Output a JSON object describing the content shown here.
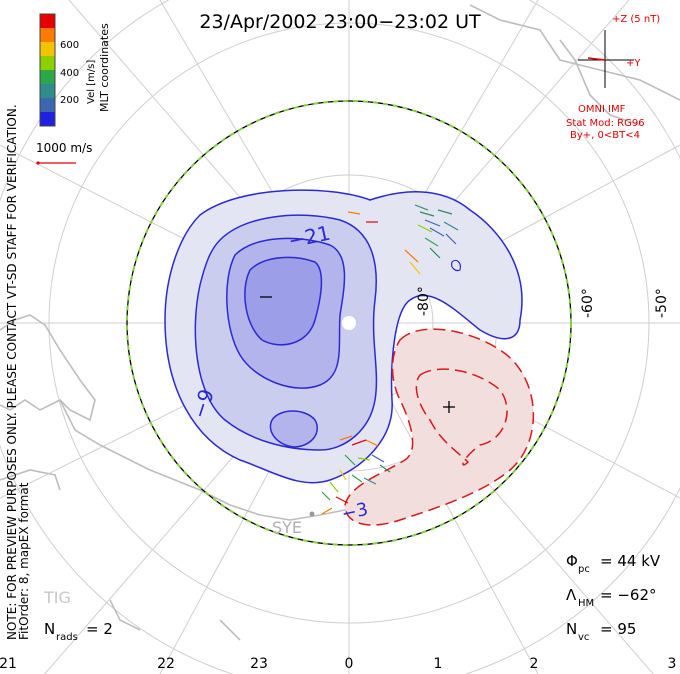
{
  "title": "23/Apr/2002 23:00−23:02 UT",
  "colorbar": {
    "coord_label": "MLT coordinates",
    "vel_label": "Vel [m/s]",
    "ticks": [
      "600",
      "400",
      "200"
    ],
    "colors": [
      "#e60000",
      "#ff7a00",
      "#f5c400",
      "#8cd000",
      "#2aa84a",
      "#2f8c8a",
      "#3c66b0",
      "#2020e0"
    ]
  },
  "scale_vector": {
    "label": "1000 m/s"
  },
  "imf": {
    "z_label": "+Z (5 nT)",
    "y_label": "+Y",
    "source": "OMNI IMF",
    "model": "Stat Mod: RG96",
    "condition": "By+, 0<BT<4"
  },
  "notes": {
    "preview": "NOTE: FOR PREVIEW PURPOSES ONLY. PLEASE CONTACT VT-SD STAFF FOR VERIFICATION.",
    "fit": "FitOrder: 8, mapEX format"
  },
  "latitude_labels": [
    "-80°",
    "-60°",
    "-50°"
  ],
  "contour_labels": {
    "negative_1": "−21",
    "negative_2": "−9",
    "negative_3": "−3"
  },
  "extrema": {
    "min_marker": "–",
    "max_marker": "+"
  },
  "stations": {
    "sye": "SYE",
    "tig": "TIG"
  },
  "stats": {
    "phi_pc_label": "Φ",
    "phi_pc_sub": "pc",
    "phi_pc_value": "= 44 kV",
    "lambda_hm_label": "Λ",
    "lambda_hm_sub": "HM",
    "lambda_hm_value": "= −62°",
    "nvc_label": "N",
    "nvc_sub": "vc",
    "nvc_value": "= 95",
    "nrads_label": "N",
    "nrads_sub": "rads",
    "nrads_value": "= 2"
  },
  "mlt_axis": [
    "21",
    "22",
    "23",
    "0",
    "1",
    "2",
    "3"
  ]
}
